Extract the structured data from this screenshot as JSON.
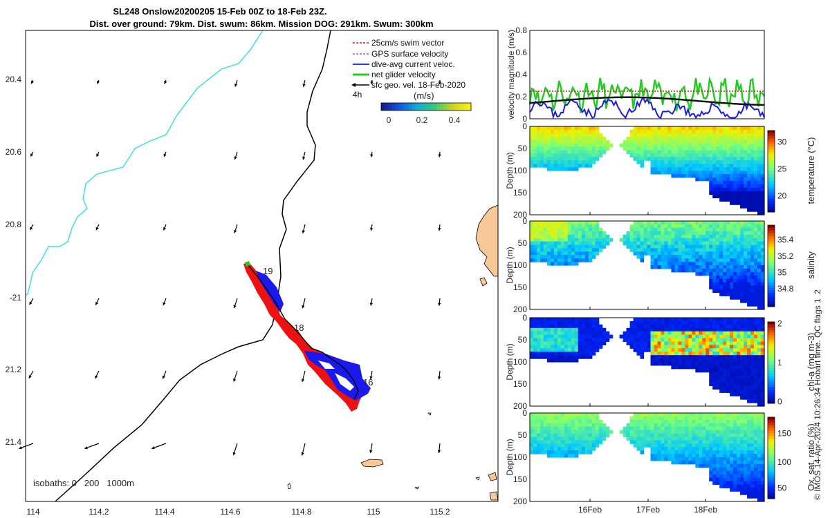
{
  "title": {
    "line1": "SL248 Onslow20200205 15-Feb 00Z to 18-Feb 23Z.",
    "line2": "Dist. over ground: 79km. Dist. swum: 86km. Mission DOG: 291km. Swum: 300km"
  },
  "map": {
    "lon_ticks": [
      "114",
      "114.2",
      "114.4",
      "114.6",
      "114.8",
      "115",
      "115.2"
    ],
    "lat_ticks": [
      "20.4",
      "20.6",
      "20.8",
      "-21",
      "21.2",
      "21.4"
    ],
    "isobaths_label": "isobaths: 0   200   1000m",
    "time_labels": [
      "19",
      "18",
      "16"
    ],
    "legend": [
      {
        "label": "25cm/s swim vector",
        "color": "#e31a1c"
      },
      {
        "label": "GPS surface velocity",
        "color": "#e040e0"
      },
      {
        "label": "dive-avg current veloc.",
        "color": "#1f3fd8"
      },
      {
        "label": "net glider velocity",
        "color": "#22cc22"
      },
      {
        "label": "sfc geo. vel. 18-Feb-2020",
        "color": "#000000"
      }
    ],
    "legend_4h": "4h",
    "colorbar_unit": "(m/s)",
    "colorbar_ticks": [
      "0",
      "0.2",
      "0.4"
    ]
  },
  "velocity_panel": {
    "ylabel": "velocity magnitude (m/s)",
    "y_ticks": [
      "0",
      "0.2",
      "0.4",
      "0.6",
      "0.8"
    ]
  },
  "panels": [
    {
      "key": "temperature",
      "ylabel": "Depth (m)",
      "cblabel": "temperature (°C)",
      "cb_ticks": [
        "30",
        "25",
        "20"
      ]
    },
    {
      "key": "salinity",
      "ylabel": "Depth (m)",
      "cblabel": "salinity",
      "cb_ticks": [
        "35.4",
        "35.2",
        "35",
        "34.8"
      ]
    },
    {
      "key": "chla",
      "ylabel": "Depth (m)",
      "cblabel": "chl-a (mg m-3)",
      "cb_ticks": [
        "2",
        "1",
        "0"
      ]
    },
    {
      "key": "oxygen",
      "ylabel": "Depth (m)",
      "cblabel": "Ox. sat. ratio (%)",
      "cb_ticks": [
        "150",
        "100",
        "50"
      ]
    }
  ],
  "depth_ticks": [
    "0",
    "50",
    "100",
    "150",
    "200"
  ],
  "time_ticks": [
    "16Feb",
    "17Feb",
    "18Feb"
  ],
  "credit": "© IMOS 14-Apr-2024 10:26:34 Hobart time. QC flags 1  2",
  "chart_data": {
    "type": "line",
    "x": [
      "16Feb",
      "17Feb",
      "18Feb"
    ],
    "series": [
      {
        "name": "25cm/s swim vector",
        "values": [
          0.25,
          0.25,
          0.25
        ]
      },
      {
        "name": "net glider velocity",
        "values": [
          0.22,
          0.25,
          0.3
        ]
      },
      {
        "name": "dive-avg current veloc.",
        "values": [
          0.12,
          0.06,
          0.05
        ]
      },
      {
        "name": "sfc geo. vel. 18-Feb-2020",
        "values": [
          0.17,
          0.19,
          0.17
        ]
      }
    ],
    "ylim": [
      0,
      0.8
    ],
    "grid": false
  },
  "colors": {
    "coast": "#40e0e0",
    "land": "#f8c896",
    "track_red": "#ee1111",
    "track_blue": "#1a1aee"
  }
}
